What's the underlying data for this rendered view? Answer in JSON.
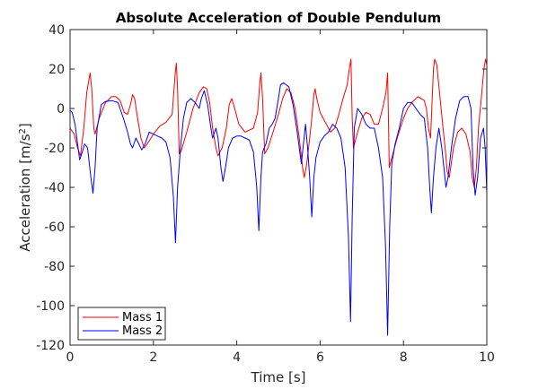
{
  "chart_data": {
    "type": "line",
    "title": "Absolute Acceleration of Double Pendulum",
    "xlabel": "Time [s]",
    "ylabel": "Acceleration [m/s",
    "ylabel_sup": "2",
    "ylabel_suffix": "]",
    "xlim": [
      0,
      10
    ],
    "ylim": [
      -120,
      40
    ],
    "xticks": [
      0,
      2,
      4,
      6,
      8,
      10
    ],
    "yticks": [
      -120,
      -100,
      -80,
      -60,
      -40,
      -20,
      0,
      20,
      40
    ],
    "grid": false,
    "legend_position": "bottom-left",
    "series": [
      {
        "name": "Mass 1",
        "color": "#ff0000",
        "points": [
          [
            0,
            -10
          ],
          [
            0.1,
            -13
          ],
          [
            0.18,
            -20
          ],
          [
            0.25,
            -24
          ],
          [
            0.33,
            -10
          ],
          [
            0.4,
            8
          ],
          [
            0.48,
            18
          ],
          [
            0.52,
            10
          ],
          [
            0.57,
            -10
          ],
          [
            0.6,
            -13
          ],
          [
            0.7,
            -5
          ],
          [
            0.85,
            3
          ],
          [
            1.0,
            6
          ],
          [
            1.1,
            6
          ],
          [
            1.2,
            4
          ],
          [
            1.3,
            -2
          ],
          [
            1.38,
            -3
          ],
          [
            1.45,
            2
          ],
          [
            1.5,
            7
          ],
          [
            1.55,
            5
          ],
          [
            1.62,
            -5
          ],
          [
            1.7,
            -15
          ],
          [
            1.78,
            -20
          ],
          [
            1.85,
            -18
          ],
          [
            2.0,
            -13
          ],
          [
            2.15,
            -9
          ],
          [
            2.3,
            -7
          ],
          [
            2.45,
            -3
          ],
          [
            2.52,
            17
          ],
          [
            2.55,
            23
          ],
          [
            2.58,
            10
          ],
          [
            2.62,
            -23
          ],
          [
            2.66,
            -22
          ],
          [
            2.8,
            -12
          ],
          [
            2.95,
            0
          ],
          [
            3.1,
            8
          ],
          [
            3.2,
            11
          ],
          [
            3.28,
            10
          ],
          [
            3.35,
            3
          ],
          [
            3.42,
            -10
          ],
          [
            3.5,
            -20
          ],
          [
            3.55,
            -24
          ],
          [
            3.65,
            -20
          ],
          [
            3.75,
            -10
          ],
          [
            3.82,
            2
          ],
          [
            3.88,
            5
          ],
          [
            3.95,
            0
          ],
          [
            4.05,
            -8
          ],
          [
            4.2,
            -12
          ],
          [
            4.4,
            -10
          ],
          [
            4.5,
            -2
          ],
          [
            4.55,
            12
          ],
          [
            4.58,
            18
          ],
          [
            4.62,
            5
          ],
          [
            4.67,
            -23
          ],
          [
            4.75,
            -20
          ],
          [
            4.9,
            -10
          ],
          [
            5.0,
            -3
          ],
          [
            5.1,
            5
          ],
          [
            5.2,
            10
          ],
          [
            5.3,
            8
          ],
          [
            5.4,
            0
          ],
          [
            5.5,
            -15
          ],
          [
            5.58,
            -30
          ],
          [
            5.62,
            -35
          ],
          [
            5.68,
            -28
          ],
          [
            5.75,
            -15
          ],
          [
            5.8,
            -5
          ],
          [
            5.85,
            7
          ],
          [
            5.88,
            10
          ],
          [
            5.92,
            5
          ],
          [
            6.0,
            -2
          ],
          [
            6.15,
            -8
          ],
          [
            6.25,
            -12
          ],
          [
            6.35,
            -10
          ],
          [
            6.45,
            -3
          ],
          [
            6.55,
            5
          ],
          [
            6.65,
            12
          ],
          [
            6.7,
            20
          ],
          [
            6.74,
            25
          ],
          [
            6.77,
            -5
          ],
          [
            6.8,
            -20
          ],
          [
            6.9,
            -12
          ],
          [
            7.0,
            -5
          ],
          [
            7.1,
            -2
          ],
          [
            7.2,
            -3
          ],
          [
            7.3,
            -8
          ],
          [
            7.4,
            -8
          ],
          [
            7.5,
            0
          ],
          [
            7.58,
            8
          ],
          [
            7.62,
            18
          ],
          [
            7.66,
            -30
          ],
          [
            7.72,
            -25
          ],
          [
            7.85,
            -15
          ],
          [
            8.0,
            -5
          ],
          [
            8.1,
            0
          ],
          [
            8.2,
            3
          ],
          [
            8.35,
            6
          ],
          [
            8.5,
            4
          ],
          [
            8.55,
            0
          ],
          [
            8.6,
            -10
          ],
          [
            8.65,
            -15
          ],
          [
            8.7,
            10
          ],
          [
            8.72,
            20
          ],
          [
            8.75,
            25
          ],
          [
            8.8,
            22
          ],
          [
            8.88,
            5
          ],
          [
            8.95,
            -10
          ],
          [
            9.0,
            -20
          ],
          [
            9.05,
            -32
          ],
          [
            9.1,
            -35
          ],
          [
            9.2,
            -20
          ],
          [
            9.3,
            -12
          ],
          [
            9.4,
            -10
          ],
          [
            9.5,
            -13
          ],
          [
            9.6,
            -22
          ],
          [
            9.65,
            -35
          ],
          [
            9.7,
            -40
          ],
          [
            9.75,
            -30
          ],
          [
            9.8,
            -10
          ],
          [
            9.88,
            8
          ],
          [
            9.93,
            20
          ],
          [
            9.97,
            25
          ],
          [
            10.0,
            22
          ]
        ]
      },
      {
        "name": "Mass 2",
        "color": "#0000ff",
        "points": [
          [
            0,
            -1
          ],
          [
            0.05,
            -2
          ],
          [
            0.12,
            -8
          ],
          [
            0.18,
            -18
          ],
          [
            0.23,
            -26
          ],
          [
            0.28,
            -23
          ],
          [
            0.35,
            -18
          ],
          [
            0.42,
            -20
          ],
          [
            0.5,
            -35
          ],
          [
            0.55,
            -43
          ],
          [
            0.6,
            -30
          ],
          [
            0.65,
            -10
          ],
          [
            0.75,
            2
          ],
          [
            0.85,
            3.5
          ],
          [
            1.0,
            4
          ],
          [
            1.15,
            3
          ],
          [
            1.28,
            -5
          ],
          [
            1.38,
            -12
          ],
          [
            1.45,
            -18
          ],
          [
            1.5,
            -20
          ],
          [
            1.58,
            -15
          ],
          [
            1.65,
            -18
          ],
          [
            1.72,
            -21
          ],
          [
            1.8,
            -18
          ],
          [
            1.9,
            -12
          ],
          [
            2.0,
            -13
          ],
          [
            2.1,
            -14
          ],
          [
            2.2,
            -15
          ],
          [
            2.3,
            -17
          ],
          [
            2.4,
            -25
          ],
          [
            2.48,
            -45
          ],
          [
            2.53,
            -68
          ],
          [
            2.58,
            -40
          ],
          [
            2.65,
            -20
          ],
          [
            2.72,
            -5
          ],
          [
            2.8,
            3
          ],
          [
            2.9,
            5
          ],
          [
            3.0,
            3
          ],
          [
            3.1,
            0
          ],
          [
            3.15,
            5
          ],
          [
            3.22,
            9
          ],
          [
            3.3,
            2
          ],
          [
            3.38,
            -10
          ],
          [
            3.42,
            -15
          ],
          [
            3.5,
            -10
          ],
          [
            3.55,
            -15
          ],
          [
            3.62,
            -30
          ],
          [
            3.67,
            -37
          ],
          [
            3.73,
            -30
          ],
          [
            3.8,
            -20
          ],
          [
            3.9,
            -15
          ],
          [
            4.0,
            -14
          ],
          [
            4.1,
            -14
          ],
          [
            4.2,
            -15
          ],
          [
            4.3,
            -16
          ],
          [
            4.4,
            -22
          ],
          [
            4.48,
            -40
          ],
          [
            4.53,
            -62
          ],
          [
            4.58,
            -35
          ],
          [
            4.62,
            -22
          ],
          [
            4.7,
            -18
          ],
          [
            4.78,
            -10
          ],
          [
            4.85,
            -8
          ],
          [
            4.92,
            -5
          ],
          [
            5.0,
            5
          ],
          [
            5.05,
            12
          ],
          [
            5.12,
            13
          ],
          [
            5.25,
            11
          ],
          [
            5.35,
            2
          ],
          [
            5.45,
            -12
          ],
          [
            5.5,
            -20
          ],
          [
            5.55,
            -28
          ],
          [
            5.6,
            -18
          ],
          [
            5.65,
            -8
          ],
          [
            5.7,
            -20
          ],
          [
            5.75,
            -35
          ],
          [
            5.8,
            -55
          ],
          [
            5.85,
            -35
          ],
          [
            5.9,
            -25
          ],
          [
            6.0,
            -17
          ],
          [
            6.1,
            -14
          ],
          [
            6.2,
            -12
          ],
          [
            6.3,
            -8
          ],
          [
            6.4,
            -10
          ],
          [
            6.5,
            -15
          ],
          [
            6.6,
            -30
          ],
          [
            6.68,
            -65
          ],
          [
            6.73,
            -108
          ],
          [
            6.77,
            -55
          ],
          [
            6.82,
            -10
          ],
          [
            6.9,
            0
          ],
          [
            7.0,
            -3
          ],
          [
            7.1,
            -8
          ],
          [
            7.2,
            -10
          ],
          [
            7.3,
            -10
          ],
          [
            7.4,
            -20
          ],
          [
            7.5,
            -35
          ],
          [
            7.57,
            -70
          ],
          [
            7.62,
            -115
          ],
          [
            7.67,
            -60
          ],
          [
            7.72,
            -28
          ],
          [
            7.8,
            -18
          ],
          [
            7.9,
            -10
          ],
          [
            8.0,
            0
          ],
          [
            8.1,
            3
          ],
          [
            8.2,
            3
          ],
          [
            8.3,
            0
          ],
          [
            8.4,
            -3
          ],
          [
            8.5,
            -5
          ],
          [
            8.58,
            -20
          ],
          [
            8.63,
            -40
          ],
          [
            8.67,
            -53
          ],
          [
            8.72,
            -35
          ],
          [
            8.78,
            -20
          ],
          [
            8.85,
            -10
          ],
          [
            8.92,
            -20
          ],
          [
            8.97,
            -30
          ],
          [
            9.02,
            -40
          ],
          [
            9.07,
            -35
          ],
          [
            9.15,
            -20
          ],
          [
            9.25,
            -5
          ],
          [
            9.35,
            4
          ],
          [
            9.45,
            6
          ],
          [
            9.55,
            6
          ],
          [
            9.62,
            0
          ],
          [
            9.67,
            -30
          ],
          [
            9.72,
            -44
          ],
          [
            9.78,
            -35
          ],
          [
            9.85,
            -15
          ],
          [
            9.92,
            -10
          ],
          [
            9.96,
            -20
          ],
          [
            10.0,
            -43
          ]
        ]
      }
    ]
  }
}
